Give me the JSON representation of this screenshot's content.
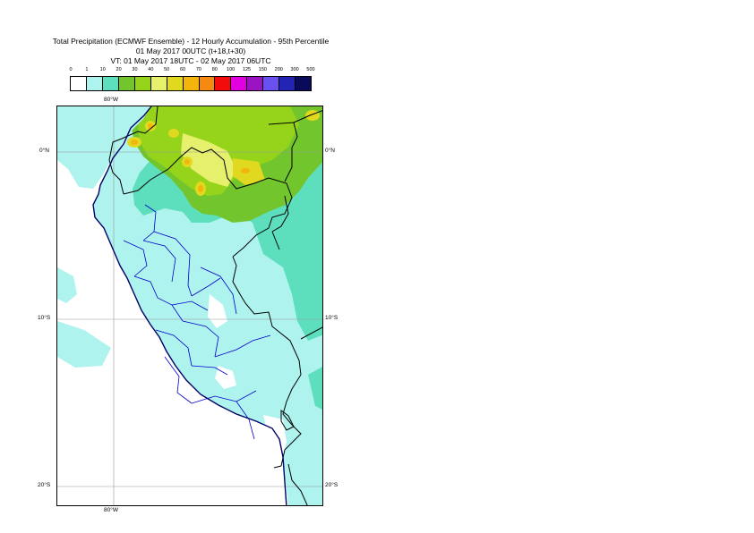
{
  "title": {
    "line1": "Total Precipitation (ECMWF Ensemble) - 12 Hourly Accumulation - 95th Percentile",
    "line2": "01 May 2017 00UTC (t+18,t+30)",
    "line3": "VT: 01 May 2017 18UTC - 02 May 2017 06UTC"
  },
  "legend": {
    "ticks": [
      "0",
      "1",
      "10",
      "20",
      "30",
      "40",
      "50",
      "60",
      "70",
      "80",
      "100",
      "125",
      "150",
      "200",
      "300",
      "500"
    ],
    "colors": [
      "#ffffff",
      "#aef3ee",
      "#5ddfbe",
      "#73c52d",
      "#96d41c",
      "#e6f06d",
      "#e0d91f",
      "#f3b40e",
      "#f68a10",
      "#f20c0c",
      "#e100e0",
      "#9a14c4",
      "#6a50f0",
      "#2424b4",
      "#0a0a5a"
    ]
  },
  "map": {
    "top_longitude_label": "80°W",
    "bottom_longitude_label": "80°W",
    "latitude_labels_left": [
      "0°N",
      "10°S",
      "20°S"
    ],
    "latitude_labels_right": [
      "0°N",
      "10°S",
      "20°S"
    ],
    "precip_colors": {
      "light": "#aef3ee",
      "medium": "#5ddfbe",
      "green": "#73c52d",
      "yellow_green": "#96d41c",
      "pale_yellow": "#e6f06d",
      "yellow": "#e0d91f",
      "orange": "#f3b40e"
    },
    "coast_color": "#000066",
    "border_color": "#000000",
    "region_color": "#0000cc",
    "grid_color": "#999999"
  }
}
